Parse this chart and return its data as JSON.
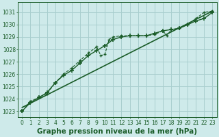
{
  "background_color": "#ceeaea",
  "grid_color": "#a8cece",
  "line_color": "#1a5c28",
  "title": "Graphe pression niveau de la mer (hPa)",
  "xlim": [
    -0.5,
    23.5
  ],
  "ylim": [
    1022.5,
    1031.8
  ],
  "yticks": [
    1023,
    1024,
    1025,
    1026,
    1027,
    1028,
    1029,
    1030,
    1031
  ],
  "xticks": [
    0,
    1,
    2,
    3,
    4,
    5,
    6,
    7,
    8,
    9,
    10,
    11,
    12,
    13,
    14,
    15,
    16,
    17,
    18,
    19,
    20,
    21,
    22,
    23
  ],
  "series_jagged_x": [
    0,
    1,
    2,
    3,
    4,
    5,
    6,
    7,
    8,
    9,
    9.5,
    10,
    10.5,
    11,
    12,
    13,
    14,
    15,
    16,
    17,
    17.5,
    18,
    19,
    20,
    21,
    22,
    23
  ],
  "series_jagged_y": [
    1023.0,
    1023.8,
    1024.1,
    1024.4,
    1025.3,
    1026.0,
    1026.5,
    1027.1,
    1027.7,
    1028.2,
    1027.5,
    1027.6,
    1028.8,
    1029.0,
    1029.1,
    1029.1,
    1029.1,
    1029.1,
    1029.2,
    1029.5,
    1029.1,
    1029.6,
    1029.7,
    1030.0,
    1030.5,
    1031.0,
    1031.1
  ],
  "series_smooth_x": [
    0,
    1,
    2,
    3,
    4,
    5,
    6,
    7,
    8,
    9,
    10,
    11,
    12,
    13,
    14,
    15,
    16,
    17,
    18,
    19,
    20,
    21,
    22,
    23
  ],
  "series_smooth_y": [
    1023.0,
    1023.7,
    1024.1,
    1024.5,
    1025.3,
    1025.9,
    1026.3,
    1026.9,
    1027.5,
    1027.9,
    1028.3,
    1028.8,
    1029.0,
    1029.1,
    1029.1,
    1029.1,
    1029.3,
    1029.5,
    1029.6,
    1029.7,
    1030.0,
    1030.3,
    1030.5,
    1031.0
  ],
  "series_line_x": [
    0,
    23
  ],
  "series_line_y": [
    1023.3,
    1031.1
  ],
  "tick_fontsize": 5.5,
  "title_fontsize": 7.5
}
